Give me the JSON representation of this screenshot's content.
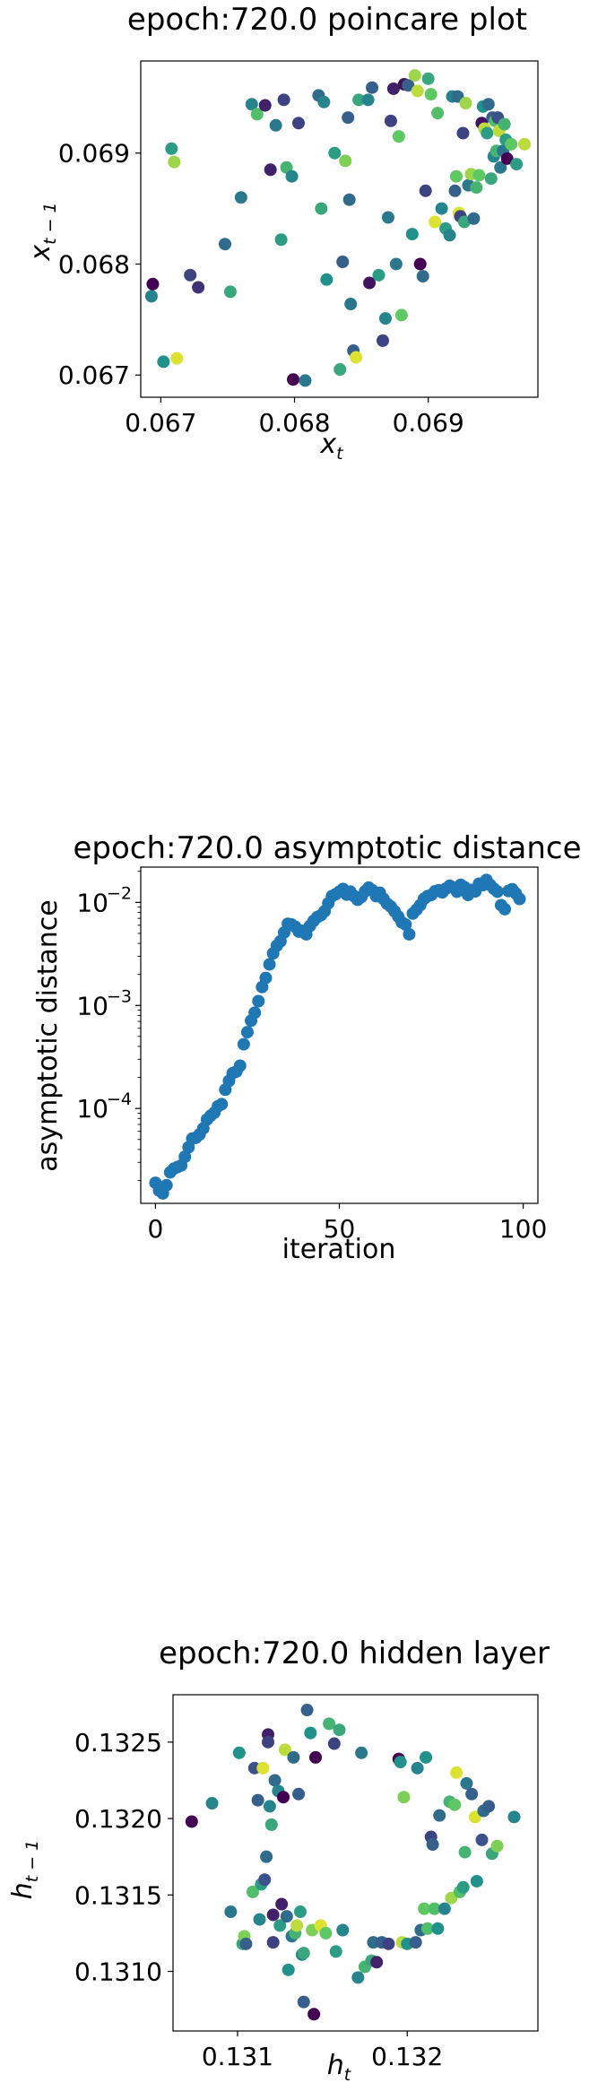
{
  "chart_data": [
    {
      "type": "scatter",
      "title": "epoch:720.0 poincare plot",
      "xlabel": "x",
      "xlabel_sub": "t",
      "ylabel": "x",
      "ylabel_sub": "t − 1",
      "xlim": [
        0.06685,
        0.06982
      ],
      "ylim": [
        0.0668,
        0.06983
      ],
      "xticks": [
        0.067,
        0.068,
        0.069
      ],
      "xtick_labels": [
        "0.067",
        "0.068",
        "0.069"
      ],
      "yticks": [
        0.067,
        0.068,
        0.069
      ],
      "ytick_labels": [
        "0.067",
        "0.068",
        "0.069"
      ],
      "colormap": [
        "#440154",
        "#3b528b",
        "#21918c",
        "#5ec962",
        "#fde725"
      ],
      "points": [
        [
          0.06693,
          0.06771,
          0.45
        ],
        [
          0.06694,
          0.06782,
          0.0
        ],
        [
          0.06702,
          0.06712,
          0.5
        ],
        [
          0.06708,
          0.06904,
          0.55
        ],
        [
          0.0671,
          0.06892,
          0.85
        ],
        [
          0.06712,
          0.06715,
          0.95
        ],
        [
          0.06722,
          0.0679,
          0.2
        ],
        [
          0.06728,
          0.06779,
          0.15
        ],
        [
          0.06748,
          0.06818,
          0.35
        ],
        [
          0.06752,
          0.06775,
          0.6
        ],
        [
          0.0676,
          0.0686,
          0.4
        ],
        [
          0.06768,
          0.06944,
          0.45
        ],
        [
          0.06772,
          0.06935,
          0.7
        ],
        [
          0.06778,
          0.06943,
          0.1
        ],
        [
          0.06782,
          0.06885,
          0.1
        ],
        [
          0.06786,
          0.06925,
          0.4
        ],
        [
          0.0679,
          0.06822,
          0.55
        ],
        [
          0.06792,
          0.06948,
          0.2
        ],
        [
          0.06794,
          0.06887,
          0.65
        ],
        [
          0.06798,
          0.06879,
          0.45
        ],
        [
          0.06799,
          0.06696,
          0.0
        ],
        [
          0.06803,
          0.06927,
          0.2
        ],
        [
          0.06808,
          0.06695,
          0.4
        ],
        [
          0.06818,
          0.06952,
          0.35
        ],
        [
          0.0682,
          0.0685,
          0.6
        ],
        [
          0.06822,
          0.06946,
          0.45
        ],
        [
          0.06824,
          0.06786,
          0.5
        ],
        [
          0.0683,
          0.069,
          0.55
        ],
        [
          0.06834,
          0.06705,
          0.6
        ],
        [
          0.06836,
          0.06802,
          0.3
        ],
        [
          0.06838,
          0.06893,
          0.8
        ],
        [
          0.0684,
          0.06932,
          0.3
        ],
        [
          0.06841,
          0.06858,
          0.35
        ],
        [
          0.06842,
          0.06764,
          0.4
        ],
        [
          0.06844,
          0.06722,
          0.3
        ],
        [
          0.06846,
          0.06716,
          0.95
        ],
        [
          0.06848,
          0.06948,
          0.6
        ],
        [
          0.06855,
          0.06948,
          0.45
        ],
        [
          0.06856,
          0.06783,
          0.05
        ],
        [
          0.06858,
          0.06959,
          0.3
        ],
        [
          0.06863,
          0.0679,
          0.55
        ],
        [
          0.06866,
          0.06731,
          0.2
        ],
        [
          0.06868,
          0.06751,
          0.45
        ],
        [
          0.0687,
          0.06842,
          0.4
        ],
        [
          0.06872,
          0.06929,
          0.2
        ],
        [
          0.06874,
          0.06958,
          0.1
        ],
        [
          0.06876,
          0.068,
          0.4
        ],
        [
          0.06878,
          0.06915,
          0.75
        ],
        [
          0.0688,
          0.06754,
          0.75
        ],
        [
          0.06882,
          0.06962,
          0.05
        ],
        [
          0.06885,
          0.06961,
          0.3
        ],
        [
          0.06888,
          0.06827,
          0.5
        ],
        [
          0.0689,
          0.0697,
          0.85
        ],
        [
          0.06892,
          0.06956,
          0.9
        ],
        [
          0.06894,
          0.068,
          0.0
        ],
        [
          0.06896,
          0.06789,
          0.35
        ],
        [
          0.06898,
          0.06866,
          0.2
        ],
        [
          0.069,
          0.06967,
          0.6
        ],
        [
          0.06902,
          0.06953,
          0.75
        ],
        [
          0.06905,
          0.06838,
          0.95
        ],
        [
          0.06907,
          0.06936,
          0.7
        ],
        [
          0.0691,
          0.0685,
          0.45
        ],
        [
          0.06913,
          0.06832,
          0.55
        ],
        [
          0.06916,
          0.06826,
          0.45
        ],
        [
          0.06918,
          0.06951,
          0.45
        ],
        [
          0.0692,
          0.06866,
          0.3
        ],
        [
          0.06921,
          0.06879,
          0.75
        ],
        [
          0.06922,
          0.06951,
          0.35
        ],
        [
          0.06923,
          0.06846,
          0.95
        ],
        [
          0.06924,
          0.06843,
          0.2
        ],
        [
          0.06926,
          0.06918,
          0.2
        ],
        [
          0.06927,
          0.06838,
          0.6
        ],
        [
          0.06928,
          0.06945,
          0.85
        ],
        [
          0.0693,
          0.06871,
          0.4
        ],
        [
          0.06932,
          0.06881,
          0.85
        ],
        [
          0.06934,
          0.06841,
          0.35
        ],
        [
          0.06936,
          0.06869,
          0.65
        ],
        [
          0.06938,
          0.0688,
          0.75
        ],
        [
          0.0694,
          0.06927,
          0.05
        ],
        [
          0.06941,
          0.06942,
          0.5
        ],
        [
          0.06942,
          0.06922,
          0.9
        ],
        [
          0.06944,
          0.06918,
          0.55
        ],
        [
          0.06945,
          0.06944,
          0.35
        ],
        [
          0.06947,
          0.06877,
          0.6
        ],
        [
          0.06948,
          0.06932,
          0.3
        ],
        [
          0.06949,
          0.06897,
          0.45
        ],
        [
          0.0695,
          0.06929,
          0.7
        ],
        [
          0.06951,
          0.06902,
          0.65
        ],
        [
          0.06952,
          0.06932,
          0.25
        ],
        [
          0.06953,
          0.0692,
          0.9
        ],
        [
          0.06954,
          0.06887,
          0.4
        ],
        [
          0.06956,
          0.06902,
          0.4
        ],
        [
          0.06957,
          0.06926,
          0.65
        ],
        [
          0.06958,
          0.06912,
          0.55
        ],
        [
          0.06959,
          0.06895,
          0.0
        ],
        [
          0.06962,
          0.06908,
          0.75
        ],
        [
          0.06966,
          0.0689,
          0.55
        ],
        [
          0.06972,
          0.06908,
          0.9
        ]
      ]
    },
    {
      "type": "scatter",
      "title": "epoch:720.0 asymptotic distance",
      "xlabel": "iteration",
      "ylabel": "asymptotic distance",
      "yscale": "log",
      "xlim": [
        -4,
        104
      ],
      "ylim": [
        1.2e-05,
        0.022
      ],
      "xticks": [
        0,
        50,
        100
      ],
      "xtick_labels": [
        "0",
        "50",
        "100"
      ],
      "yticks": [
        0.0001,
        0.001,
        0.01
      ],
      "ytick_base": "10",
      "ytick_exponents": [
        "−4",
        "−3",
        "−2"
      ],
      "color": "#1f77b4",
      "x": [
        0,
        1,
        2,
        3,
        4,
        5,
        6,
        7,
        8,
        9,
        10,
        11,
        12,
        13,
        14,
        15,
        16,
        17,
        18,
        19,
        20,
        21,
        22,
        23,
        24,
        25,
        26,
        27,
        28,
        29,
        30,
        31,
        32,
        33,
        34,
        35,
        36,
        37,
        38,
        39,
        40,
        41,
        42,
        43,
        44,
        45,
        46,
        47,
        48,
        49,
        50,
        51,
        52,
        53,
        54,
        55,
        56,
        57,
        58,
        59,
        60,
        61,
        62,
        63,
        64,
        65,
        66,
        67,
        68,
        69,
        70,
        71,
        72,
        73,
        74,
        75,
        76,
        77,
        78,
        79,
        80,
        81,
        82,
        83,
        84,
        85,
        86,
        87,
        88,
        89,
        90,
        91,
        92,
        93,
        94,
        95,
        96,
        97,
        98,
        99
      ],
      "y": [
        1.9e-05,
        1.6e-05,
        1.5e-05,
        1.8e-05,
        2.4e-05,
        2.6e-05,
        2.7e-05,
        2.8e-05,
        3.4e-05,
        4.2e-05,
        5.1e-05,
        5.2e-05,
        5.6e-05,
        6.4e-05,
        7.8e-05,
        8.5e-05,
        9.1e-05,
        0.000105,
        0.00011,
        0.000152,
        0.000185,
        0.00022,
        0.000228,
        0.00026,
        0.00042,
        0.00055,
        0.00071,
        0.00085,
        0.0011,
        0.00151,
        0.00185,
        0.0025,
        0.0032,
        0.0038,
        0.0042,
        0.0051,
        0.0062,
        0.0061,
        0.0058,
        0.0052,
        0.0053,
        0.0049,
        0.0059,
        0.0066,
        0.0072,
        0.0075,
        0.0082,
        0.0098,
        0.0115,
        0.012,
        0.0127,
        0.0135,
        0.0119,
        0.0127,
        0.0115,
        0.0106,
        0.0113,
        0.0128,
        0.0139,
        0.0131,
        0.0115,
        0.0124,
        0.0108,
        0.0097,
        0.0091,
        0.0082,
        0.0073,
        0.0064,
        0.0061,
        0.0049,
        0.0078,
        0.0085,
        0.0094,
        0.0108,
        0.0115,
        0.0118,
        0.0128,
        0.0131,
        0.0125,
        0.0136,
        0.0145,
        0.0139,
        0.0127,
        0.0148,
        0.0141,
        0.0118,
        0.0132,
        0.0128,
        0.0152,
        0.0147,
        0.0165,
        0.0148,
        0.0136,
        0.0127,
        0.0094,
        0.0086,
        0.0129,
        0.0134,
        0.0122,
        0.0108
      ]
    },
    {
      "type": "scatter",
      "title": "epoch:720.0 hidden layer",
      "xlabel": "h",
      "xlabel_sub": "t",
      "ylabel": "h",
      "ylabel_sub": "t − 1",
      "xlim": [
        0.13062,
        0.13277
      ],
      "ylim": [
        0.13061,
        0.13281
      ],
      "xticks": [
        0.131,
        0.132
      ],
      "xtick_labels": [
        "0.131",
        "0.132"
      ],
      "yticks": [
        0.131,
        0.1315,
        0.132,
        0.1325
      ],
      "ytick_labels": [
        "0.1310",
        "0.1315",
        "0.1320",
        "0.1325"
      ],
      "colormap": [
        "#440154",
        "#3b528b",
        "#21918c",
        "#5ec962",
        "#fde725"
      ],
      "points": [
        [
          0.13073,
          0.13198,
          0.0
        ],
        [
          0.13085,
          0.1321,
          0.45
        ],
        [
          0.13096,
          0.13139,
          0.4
        ],
        [
          0.13101,
          0.13243,
          0.5
        ],
        [
          0.13103,
          0.13118,
          0.6
        ],
        [
          0.13104,
          0.13123,
          0.8
        ],
        [
          0.13105,
          0.13118,
          0.3
        ],
        [
          0.13109,
          0.13152,
          0.7
        ],
        [
          0.1311,
          0.13233,
          0.25
        ],
        [
          0.13112,
          0.13212,
          0.3
        ],
        [
          0.13113,
          0.13134,
          0.45
        ],
        [
          0.13114,
          0.13157,
          0.55
        ],
        [
          0.13115,
          0.13233,
          0.95
        ],
        [
          0.13116,
          0.1316,
          0.25
        ],
        [
          0.13117,
          0.13175,
          0.35
        ],
        [
          0.13118,
          0.13255,
          0.1
        ],
        [
          0.13118,
          0.1325,
          0.2
        ],
        [
          0.13119,
          0.13208,
          0.45
        ],
        [
          0.1312,
          0.13196,
          0.6
        ],
        [
          0.13121,
          0.13137,
          0.1
        ],
        [
          0.13121,
          0.13119,
          0.2
        ],
        [
          0.13122,
          0.13225,
          0.35
        ],
        [
          0.13124,
          0.13218,
          0.45
        ],
        [
          0.13125,
          0.1313,
          0.55
        ],
        [
          0.13126,
          0.13144,
          0.1
        ],
        [
          0.13127,
          0.13214,
          0.0
        ],
        [
          0.13128,
          0.13245,
          0.9
        ],
        [
          0.13129,
          0.13136,
          0.35
        ],
        [
          0.1313,
          0.13101,
          0.5
        ],
        [
          0.13132,
          0.13123,
          0.4
        ],
        [
          0.13133,
          0.1324,
          0.35
        ],
        [
          0.13134,
          0.13125,
          0.65
        ],
        [
          0.13135,
          0.1313,
          0.9
        ],
        [
          0.13136,
          0.13216,
          0.3
        ],
        [
          0.13137,
          0.13139,
          0.55
        ],
        [
          0.13138,
          0.13111,
          0.45
        ],
        [
          0.13139,
          0.13112,
          0.6
        ],
        [
          0.13139,
          0.1308,
          0.3
        ],
        [
          0.13141,
          0.13271,
          0.3
        ],
        [
          0.13143,
          0.13256,
          0.5
        ],
        [
          0.13144,
          0.13127,
          0.8
        ],
        [
          0.13145,
          0.13072,
          0.0
        ],
        [
          0.13146,
          0.1324,
          0.0
        ],
        [
          0.13149,
          0.1313,
          0.95
        ],
        [
          0.13152,
          0.13125,
          0.75
        ],
        [
          0.13154,
          0.13262,
          0.65
        ],
        [
          0.13157,
          0.13249,
          0.2
        ],
        [
          0.13158,
          0.13113,
          0.55
        ],
        [
          0.1316,
          0.13258,
          0.6
        ],
        [
          0.13162,
          0.13127,
          0.45
        ],
        [
          0.13171,
          0.13096,
          0.45
        ],
        [
          0.13173,
          0.13243,
          0.4
        ],
        [
          0.13175,
          0.13103,
          0.65
        ],
        [
          0.13179,
          0.13107,
          0.6
        ],
        [
          0.1318,
          0.13119,
          0.35
        ],
        [
          0.13182,
          0.13106,
          0.1
        ],
        [
          0.13185,
          0.13119,
          0.3
        ],
        [
          0.13189,
          0.13118,
          0.2
        ],
        [
          0.13195,
          0.13239,
          0.0
        ],
        [
          0.13196,
          0.13237,
          0.5
        ],
        [
          0.13197,
          0.13119,
          0.9
        ],
        [
          0.13198,
          0.13214,
          0.8
        ],
        [
          0.132,
          0.13118,
          0.5
        ],
        [
          0.13205,
          0.13119,
          0.3
        ],
        [
          0.13206,
          0.13233,
          0.45
        ],
        [
          0.13208,
          0.13127,
          0.35
        ],
        [
          0.1321,
          0.13141,
          0.75
        ],
        [
          0.13211,
          0.1324,
          0.5
        ],
        [
          0.13212,
          0.13128,
          0.7
        ],
        [
          0.13214,
          0.13188,
          0.2
        ],
        [
          0.13215,
          0.13183,
          0.3
        ],
        [
          0.13216,
          0.13141,
          0.7
        ],
        [
          0.13218,
          0.13128,
          0.5
        ],
        [
          0.13219,
          0.13202,
          0.35
        ],
        [
          0.13222,
          0.13141,
          0.45
        ],
        [
          0.13225,
          0.13211,
          0.65
        ],
        [
          0.13226,
          0.13148,
          0.85
        ],
        [
          0.13228,
          0.13209,
          0.75
        ],
        [
          0.13229,
          0.1323,
          0.95
        ],
        [
          0.13231,
          0.13152,
          0.7
        ],
        [
          0.13233,
          0.13155,
          0.55
        ],
        [
          0.13234,
          0.13178,
          0.65
        ],
        [
          0.13235,
          0.13223,
          0.4
        ],
        [
          0.13238,
          0.13216,
          0.3
        ],
        [
          0.1324,
          0.13201,
          0.95
        ],
        [
          0.13241,
          0.13159,
          0.5
        ],
        [
          0.13244,
          0.13186,
          0.25
        ],
        [
          0.13245,
          0.13205,
          0.35
        ],
        [
          0.13248,
          0.13208,
          0.3
        ],
        [
          0.1325,
          0.13177,
          0.6
        ],
        [
          0.13253,
          0.13182,
          0.8
        ],
        [
          0.13263,
          0.13201,
          0.45
        ]
      ]
    }
  ]
}
